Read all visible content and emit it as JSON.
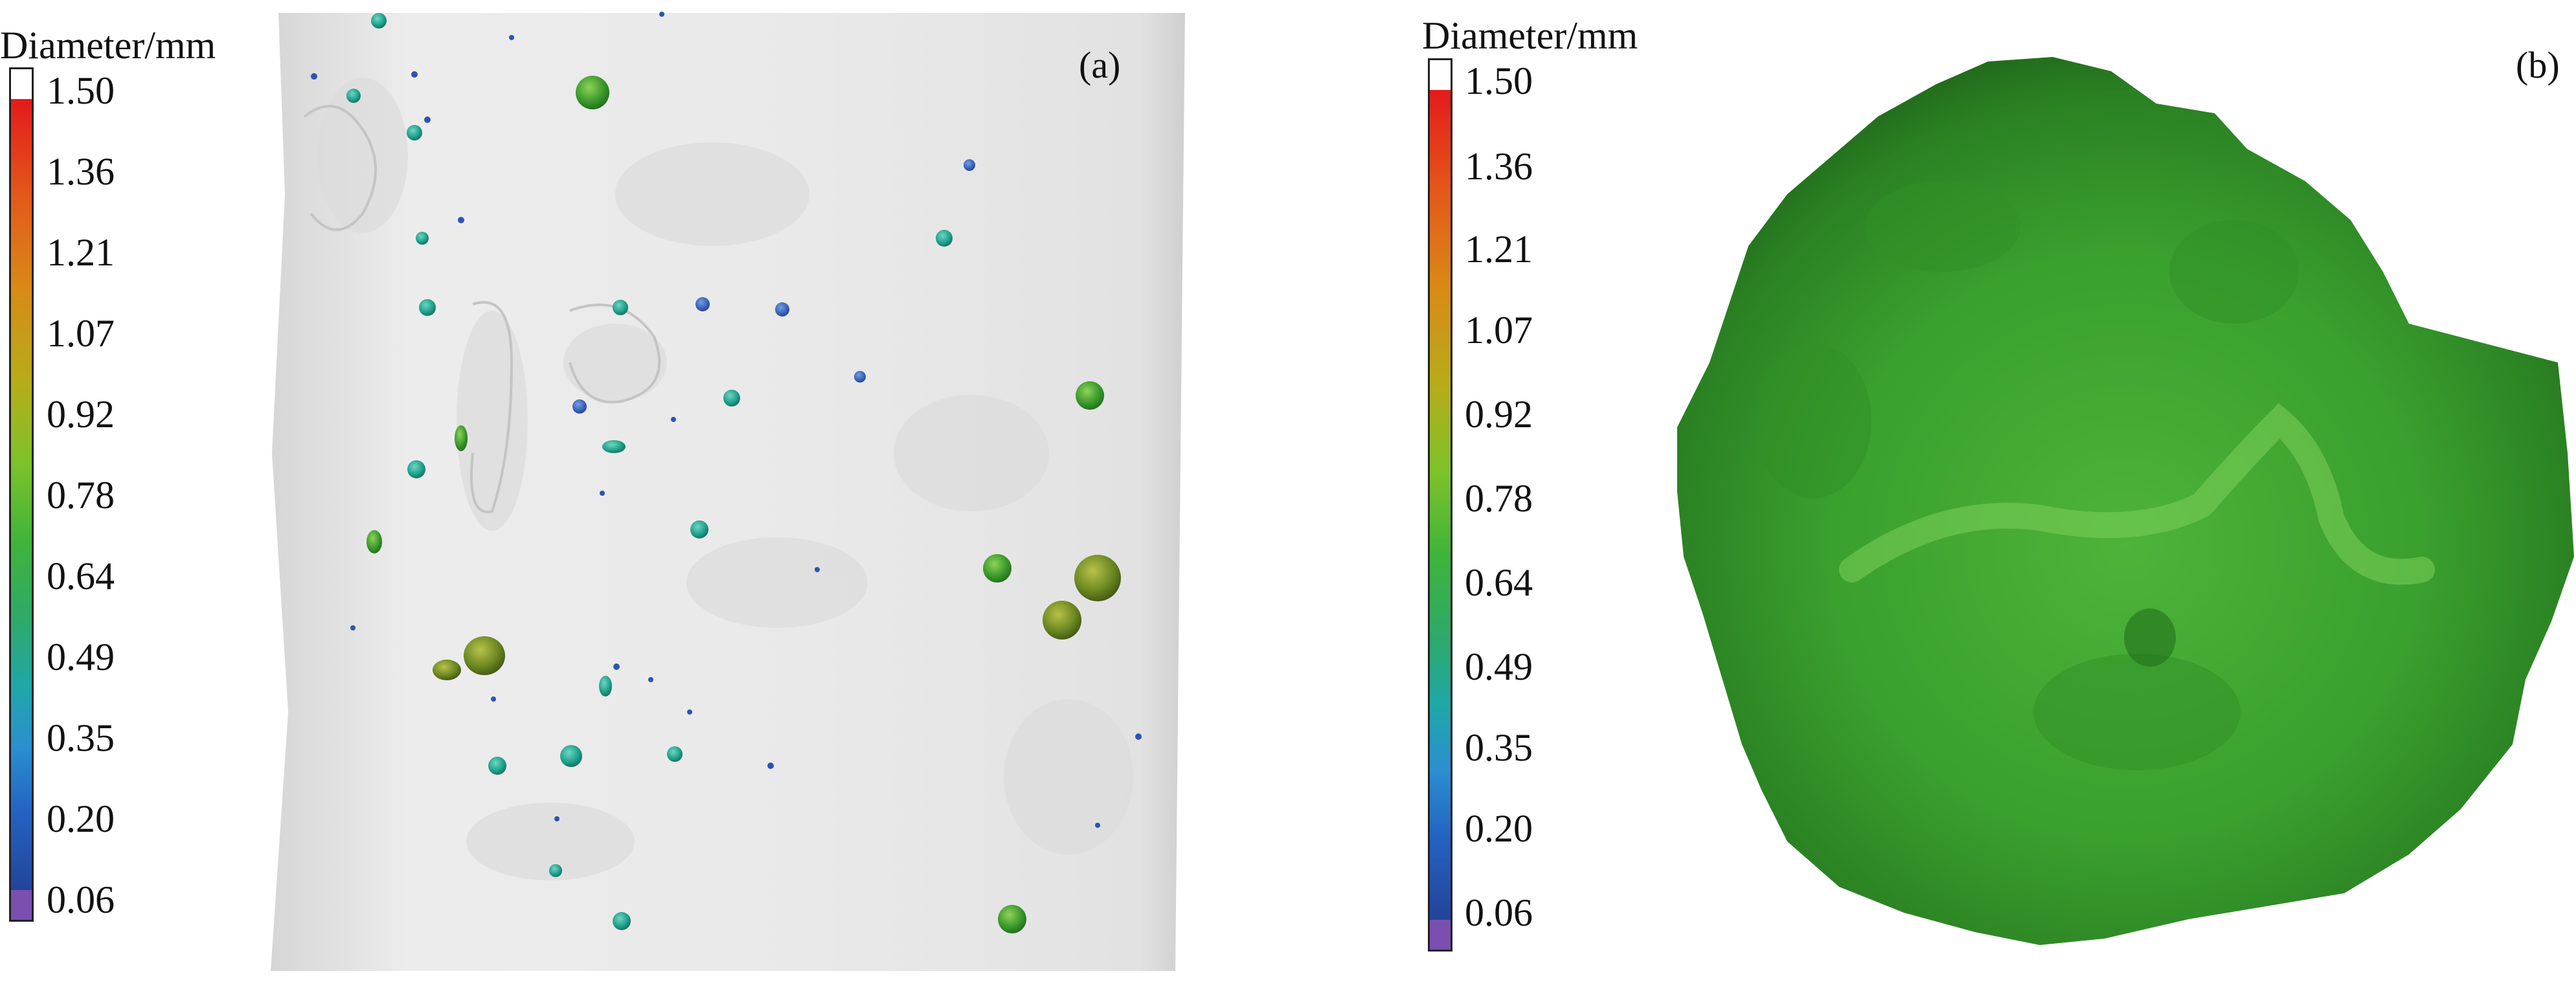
{
  "colorbar_title": "Diameter/mm",
  "ticks": [
    "1.50",
    "1.36",
    "1.21",
    "1.07",
    "0.92",
    "0.78",
    "0.64",
    "0.49",
    "0.35",
    "0.20",
    "0.06"
  ],
  "panel_a_label": "(a)",
  "panel_b_label": "(b)",
  "colors": {
    "specimen_gray": "#e6e6e6",
    "pore_green": "#3a9a2a",
    "pore_teal": "#2aa89a",
    "pore_blue": "#2a55b5",
    "sphere_green": "#2f9a2a"
  }
}
